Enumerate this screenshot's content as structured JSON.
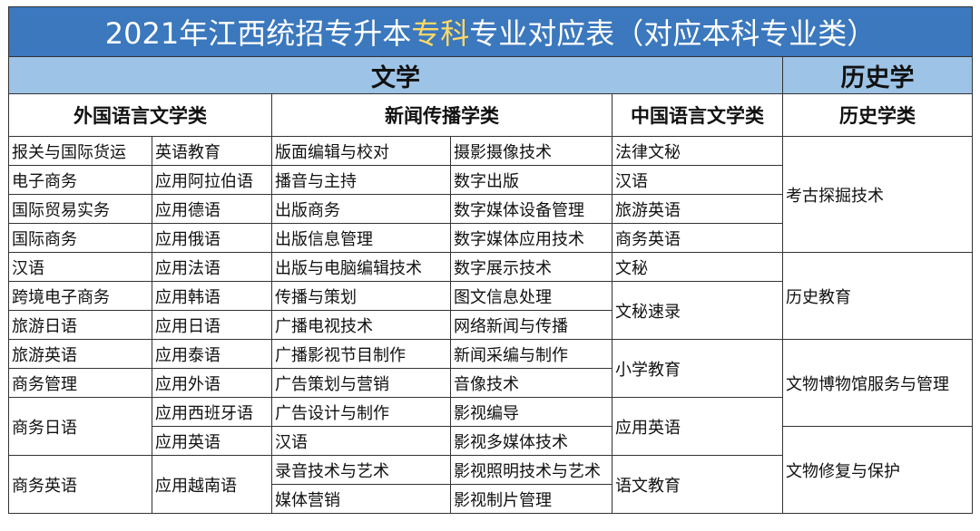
{
  "title": {
    "prefix": "2021年江西统招专升本",
    "highlight": "专科",
    "suffix": "专业对应表（对应本科专业类）"
  },
  "categories": [
    "文学",
    "历史学"
  ],
  "subcategories": [
    "外国语言文学类",
    "新闻传播学类",
    "中国语言文学类",
    "历史学类"
  ],
  "col_a": [
    "报关与国际货运",
    "电子商务",
    "国际贸易实务",
    "国际商务",
    "汉语",
    "跨境电子商务",
    "旅游日语",
    "旅游英语",
    "商务管理",
    "商务日语",
    "商务英语"
  ],
  "col_b": [
    "英语教育",
    "应用阿拉伯语",
    "应用德语",
    "应用俄语",
    "应用法语",
    "应用韩语",
    "应用日语",
    "应用泰语",
    "应用外语",
    "应用西班牙语",
    "应用英语",
    "应用越南语"
  ],
  "col_c": [
    "版面编辑与校对",
    "播音与主持",
    "出版商务",
    "出版信息管理",
    "出版与电脑编辑技术",
    "传播与策划",
    "广播电视技术",
    "广播影视节目制作",
    "广告策划与营销",
    "广告设计与制作",
    "汉语",
    "录音技术与艺术",
    "媒体营销"
  ],
  "col_d": [
    "摄影摄像技术",
    "数字出版",
    "数字媒体设备管理",
    "数字媒体应用技术",
    "数字展示技术",
    "图文信息处理",
    "网络新闻与传播",
    "新闻采编与制作",
    "音像技术",
    "影视编导",
    "影视多媒体技术",
    "影视照明技术与艺术",
    "影视制片管理"
  ],
  "col_e": [
    "法律文秘",
    "汉语",
    "旅游英语",
    "商务英语",
    "文秘",
    "文秘速录",
    "小学教育",
    "应用英语",
    "语文教育"
  ],
  "col_f": [
    "考古探掘技术",
    "历史教育",
    "文物博物馆服务与管理",
    "文物修复与保护"
  ],
  "colors": {
    "title_bg": "#3b78bd",
    "highlight": "#ffd966",
    "category_bg": "#9dc3e6"
  }
}
